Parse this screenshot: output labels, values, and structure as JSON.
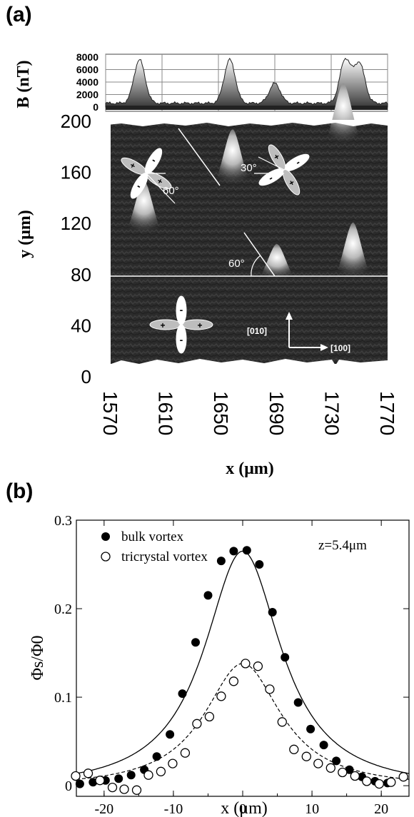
{
  "panels": {
    "a_label": "(a)",
    "b_label": "(b)"
  },
  "chart_data": [
    {
      "type": "heatmap",
      "panel": "(a)",
      "xlabel": "x (μm)",
      "ylabel": "y (μm)",
      "top_ylabel": "B (nT)",
      "xlim": [
        1570,
        1770
      ],
      "ylim": [
        0,
        200
      ],
      "top_ylim": [
        0,
        8000
      ],
      "x_ticks": [
        "1570",
        "1610",
        "1650",
        "1690",
        "1730",
        "1770"
      ],
      "y_ticks": [
        "0",
        "40",
        "80",
        "120",
        "160",
        "200"
      ],
      "top_y_ticks": [
        "0",
        "2000",
        "4000",
        "6000",
        "8000"
      ],
      "vortices": [
        {
          "x": 1594,
          "y": 120,
          "height": 0.8
        },
        {
          "x": 1658,
          "y": 158,
          "height": 0.85
        },
        {
          "x": 1690,
          "y": 85,
          "height": 0.45
        },
        {
          "x": 1738,
          "y": 190,
          "height": 0.95
        },
        {
          "x": 1745,
          "y": 85,
          "height": 0.85
        }
      ],
      "top_profile_peaks": [
        {
          "x": 1594,
          "B": 7000
        },
        {
          "x": 1658,
          "B": 7000
        },
        {
          "x": 1690,
          "B": 3200
        },
        {
          "x": 1740,
          "B": 7000
        },
        {
          "x": 1750,
          "B": 6400
        }
      ],
      "annotations": {
        "angle_upper_left": "60°",
        "angle_upper_right": "30°",
        "angle_middle": "60°",
        "dir_vertical": "[010]",
        "dir_horizontal": "[100]"
      },
      "colormap": "grayscale"
    },
    {
      "type": "scatter",
      "panel": "(b)",
      "xlabel": "x (μm)",
      "ylabel": "Φs/Φ0",
      "xlim": [
        -24,
        24
      ],
      "ylim": [
        0,
        0.3
      ],
      "x_ticks": [
        "-20",
        "-10",
        "0",
        "10",
        "20"
      ],
      "y_ticks": [
        "0",
        "0.1",
        "0.2",
        "0.3"
      ],
      "annotation": "z=5.4μm",
      "legend_position": "top-left",
      "series": [
        {
          "name": "bulk vortex",
          "marker": "filled-circle",
          "x": [
            -23.5,
            -21.6,
            -19.8,
            -17.9,
            -16.1,
            -14.2,
            -12.4,
            -10.5,
            -8.7,
            -6.8,
            -5.0,
            -3.1,
            -1.3,
            0.6,
            2.4,
            4.3,
            6.1,
            8.0,
            9.8,
            11.7,
            13.5,
            15.4,
            17.2,
            19.1,
            20.9
          ],
          "y": [
            0.002,
            0.004,
            0.006,
            0.008,
            0.012,
            0.018,
            0.033,
            0.058,
            0.104,
            0.162,
            0.215,
            0.254,
            0.265,
            0.266,
            0.25,
            0.196,
            0.145,
            0.094,
            0.064,
            0.046,
            0.028,
            0.018,
            0.01,
            0.005,
            0.003
          ]
        },
        {
          "name": "tricrystal vortex",
          "marker": "open-circle",
          "x": [
            -24.1,
            -22.3,
            -20.6,
            -18.8,
            -17.1,
            -15.3,
            -13.6,
            -11.8,
            -10.1,
            -8.3,
            -6.6,
            -4.8,
            -3.1,
            -1.3,
            0.4,
            2.2,
            3.9,
            5.7,
            7.4,
            9.2,
            10.9,
            12.7,
            14.4,
            16.2,
            17.9,
            19.7,
            21.4,
            23.2
          ],
          "y": [
            0.011,
            0.014,
            0.006,
            -0.002,
            -0.004,
            -0.005,
            0.012,
            0.016,
            0.025,
            0.037,
            0.07,
            0.078,
            0.101,
            0.118,
            0.138,
            0.135,
            0.109,
            0.072,
            0.041,
            0.033,
            0.025,
            0.02,
            0.015,
            0.011,
            0.005,
            0.002,
            0.004,
            0.01
          ]
        }
      ],
      "fits": [
        {
          "series": "bulk vortex",
          "style": "solid",
          "peak": 0.265,
          "width": 6.8
        },
        {
          "series": "tricrystal vortex",
          "style": "dashed",
          "peak": 0.138,
          "width": 6.8
        }
      ]
    }
  ]
}
